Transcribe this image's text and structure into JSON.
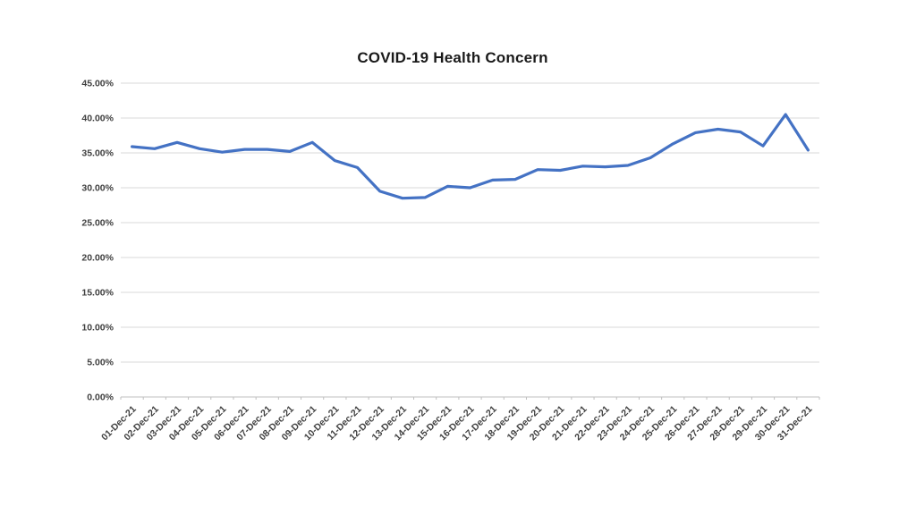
{
  "page": {
    "background": "#ffffff"
  },
  "chart_data": {
    "type": "line",
    "title": "COVID-19 Health Concern",
    "categories": [
      "01-Dec-21",
      "02-Dec-21",
      "03-Dec-21",
      "04-Dec-21",
      "05-Dec-21",
      "06-Dec-21",
      "07-Dec-21",
      "08-Dec-21",
      "09-Dec-21",
      "10-Dec-21",
      "11-Dec-21",
      "12-Dec-21",
      "13-Dec-21",
      "14-Dec-21",
      "15-Dec-21",
      "16-Dec-21",
      "17-Dec-21",
      "18-Dec-21",
      "19-Dec-21",
      "20-Dec-21",
      "21-Dec-21",
      "22-Dec-21",
      "23-Dec-21",
      "24-Dec-21",
      "25-Dec-21",
      "26-Dec-21",
      "27-Dec-21",
      "28-Dec-21",
      "29-Dec-21",
      "30-Dec-21",
      "31-Dec-21"
    ],
    "values": [
      35.9,
      35.6,
      36.5,
      35.6,
      35.1,
      35.5,
      35.5,
      35.2,
      36.5,
      33.9,
      32.9,
      29.5,
      28.5,
      28.6,
      30.2,
      30.0,
      31.1,
      31.2,
      32.6,
      32.5,
      33.1,
      33.0,
      33.2,
      34.3,
      36.3,
      37.9,
      38.4,
      38.0,
      36.0,
      40.5,
      35.4
    ],
    "xlabel": "",
    "ylabel": "",
    "ylim": [
      0,
      45
    ],
    "y_tick_step": 5,
    "y_tick_labels": [
      "0.00%",
      "5.00%",
      "10.00%",
      "15.00%",
      "20.00%",
      "25.00%",
      "30.00%",
      "35.00%",
      "40.00%",
      "45.00%"
    ],
    "grid": true,
    "legend": "none",
    "line_color": "#4472C4",
    "gridline_color": "#D9D9D9",
    "axis_color": "#BFBFBF",
    "label_color": "#3F3F3F",
    "title_color": "#1a1a1a"
  }
}
